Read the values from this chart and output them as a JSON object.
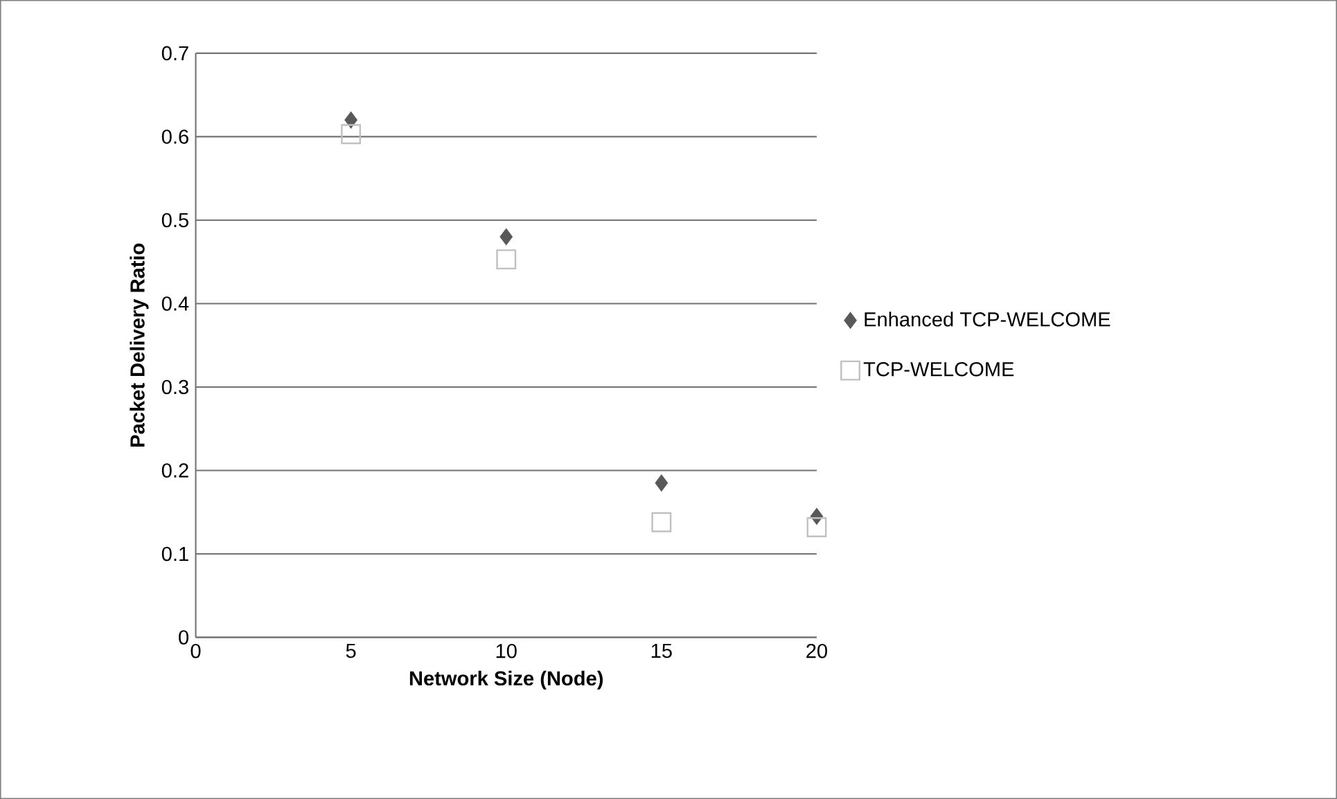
{
  "chart_data": {
    "type": "scatter",
    "xlabel": "Network Size (Node)",
    "ylabel": "Packet Delivery Ratio",
    "x": [
      5,
      10,
      15,
      20
    ],
    "series": [
      {
        "name": "Enhanced TCP-WELCOME",
        "color": "#595959",
        "marker": "diamond",
        "values": [
          0.62,
          0.48,
          0.185,
          0.145
        ]
      },
      {
        "name": "TCP-WELCOME",
        "color": "#c0c0c0",
        "marker": "square",
        "values": [
          0.603,
          0.453,
          0.138,
          0.132
        ]
      }
    ],
    "xlim": [
      0,
      20
    ],
    "xticks": [
      0,
      5,
      10,
      15,
      20
    ],
    "ylim": [
      0,
      0.7
    ],
    "yticks": [
      0,
      0.1,
      0.2,
      0.3,
      0.4,
      0.5,
      0.6,
      0.7
    ],
    "grid": "y",
    "legend": "right"
  }
}
